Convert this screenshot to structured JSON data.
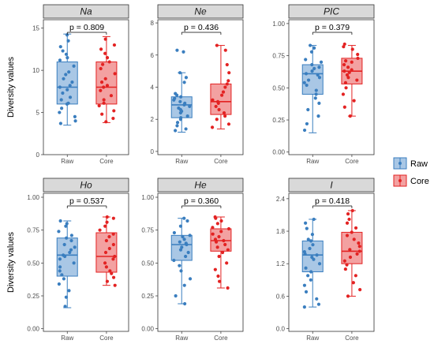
{
  "chart_data": [
    {
      "type": "box",
      "title": "Na",
      "ylabel": "Diversity values",
      "categories": [
        "Raw",
        "Core"
      ],
      "yticks": [
        0,
        5,
        10,
        15
      ],
      "ylim": [
        0,
        16
      ],
      "annotation": "p = 0.809",
      "series": [
        {
          "name": "Raw",
          "q1": 6.0,
          "median": 8.0,
          "q3": 11.0,
          "whisker_low": 3.5,
          "whisker_high": 14.3,
          "points": [
            14.2,
            13.5,
            12.8,
            12.3,
            11.9,
            11.5,
            11.2,
            10.5,
            9.8,
            9.5,
            9.0,
            8.6,
            8.2,
            8.0,
            7.7,
            7.3,
            6.8,
            6.5,
            6.1,
            6.0,
            5.5,
            5.0,
            4.5,
            4.0,
            3.7
          ]
        },
        {
          "name": "Core",
          "q1": 6.0,
          "median": 8.0,
          "q3": 11.0,
          "whisker_low": 3.8,
          "whisker_high": 14.0,
          "points": [
            13.7,
            13.0,
            12.5,
            12.0,
            11.5,
            11.0,
            10.7,
            10.2,
            9.6,
            9.0,
            8.6,
            8.2,
            8.0,
            7.6,
            7.0,
            6.5,
            6.1,
            5.8,
            5.2,
            4.8,
            4.3,
            3.9
          ]
        }
      ]
    },
    {
      "type": "box",
      "title": "Ne",
      "ylabel": "",
      "categories": [
        "Raw",
        "Core"
      ],
      "yticks": [
        0,
        2,
        4,
        6,
        8
      ],
      "ylim": [
        -0.2,
        8.2
      ],
      "annotation": "p = 0.436",
      "series": [
        {
          "name": "Raw",
          "q1": 2.1,
          "median": 2.9,
          "q3": 3.4,
          "whisker_low": 1.2,
          "whisker_high": 4.9,
          "points": [
            6.3,
            6.2,
            4.9,
            4.6,
            4.3,
            3.6,
            3.5,
            3.4,
            3.3,
            3.2,
            3.1,
            3.0,
            2.9,
            2.8,
            2.7,
            2.6,
            2.5,
            2.4,
            2.2,
            2.1,
            2.0,
            1.8,
            1.6,
            1.4,
            1.3
          ]
        },
        {
          "name": "Core",
          "q1": 2.3,
          "median": 3.1,
          "q3": 4.2,
          "whisker_low": 1.4,
          "whisker_high": 6.6,
          "points": [
            6.6,
            6.3,
            5.4,
            4.9,
            4.4,
            4.2,
            4.0,
            3.7,
            3.5,
            3.2,
            3.1,
            3.0,
            2.8,
            2.6,
            2.4,
            2.2,
            2.0,
            1.7,
            1.5
          ]
        }
      ]
    },
    {
      "type": "box",
      "title": "PIC",
      "ylabel": "",
      "categories": [
        "Raw",
        "Core"
      ],
      "yticks": [
        "0.00",
        "0.25",
        "0.50",
        "0.75",
        "1.00"
      ],
      "ylim": [
        -0.02,
        1.03
      ],
      "annotation": "p = 0.379",
      "series": [
        {
          "name": "Raw",
          "q1": 0.45,
          "median": 0.61,
          "q3": 0.68,
          "whisker_low": 0.15,
          "whisker_high": 0.83,
          "points": [
            0.83,
            0.81,
            0.78,
            0.72,
            0.7,
            0.68,
            0.66,
            0.65,
            0.63,
            0.61,
            0.6,
            0.58,
            0.56,
            0.54,
            0.52,
            0.48,
            0.45,
            0.42,
            0.38,
            0.33,
            0.28,
            0.22,
            0.17
          ]
        },
        {
          "name": "Core",
          "q1": 0.53,
          "median": 0.63,
          "q3": 0.73,
          "whisker_low": 0.28,
          "whisker_high": 0.83,
          "points": [
            0.84,
            0.82,
            0.8,
            0.76,
            0.73,
            0.71,
            0.7,
            0.68,
            0.66,
            0.64,
            0.63,
            0.62,
            0.6,
            0.58,
            0.56,
            0.54,
            0.5,
            0.45,
            0.4,
            0.35,
            0.28
          ]
        }
      ]
    },
    {
      "type": "box",
      "title": "Ho",
      "ylabel": "Diversity values",
      "categories": [
        "Raw",
        "Core"
      ],
      "yticks": [
        "0.00",
        "0.25",
        "0.50",
        "0.75",
        "1.00"
      ],
      "ylim": [
        -0.02,
        1.03
      ],
      "annotation": "p = 0.537",
      "series": [
        {
          "name": "Raw",
          "q1": 0.4,
          "median": 0.56,
          "q3": 0.69,
          "whisker_low": 0.16,
          "whisker_high": 0.82,
          "points": [
            0.82,
            0.8,
            0.78,
            0.74,
            0.71,
            0.69,
            0.67,
            0.64,
            0.62,
            0.6,
            0.58,
            0.56,
            0.55,
            0.53,
            0.5,
            0.47,
            0.44,
            0.41,
            0.38,
            0.34,
            0.29,
            0.24,
            0.17
          ]
        },
        {
          "name": "Core",
          "q1": 0.43,
          "median": 0.55,
          "q3": 0.73,
          "whisker_low": 0.33,
          "whisker_high": 0.85,
          "points": [
            0.85,
            0.84,
            0.81,
            0.78,
            0.75,
            0.72,
            0.7,
            0.67,
            0.64,
            0.61,
            0.58,
            0.55,
            0.53,
            0.5,
            0.47,
            0.44,
            0.42,
            0.39,
            0.36,
            0.33
          ]
        }
      ]
    },
    {
      "type": "box",
      "title": "He",
      "ylabel": "",
      "categories": [
        "Raw",
        "Core"
      ],
      "yticks": [
        "0.00",
        "0.25",
        "0.50",
        "0.75",
        "1.00"
      ],
      "ylim": [
        -0.02,
        1.03
      ],
      "annotation": "p = 0.360",
      "series": [
        {
          "name": "Raw",
          "q1": 0.52,
          "median": 0.64,
          "q3": 0.71,
          "whisker_low": 0.19,
          "whisker_high": 0.84,
          "points": [
            0.84,
            0.82,
            0.78,
            0.73,
            0.71,
            0.7,
            0.68,
            0.66,
            0.65,
            0.64,
            0.62,
            0.6,
            0.58,
            0.55,
            0.52,
            0.48,
            0.44,
            0.38,
            0.33,
            0.25,
            0.19
          ]
        },
        {
          "name": "Core",
          "q1": 0.59,
          "median": 0.67,
          "q3": 0.76,
          "whisker_low": 0.31,
          "whisker_high": 0.85,
          "points": [
            0.85,
            0.84,
            0.82,
            0.8,
            0.77,
            0.76,
            0.74,
            0.72,
            0.7,
            0.68,
            0.67,
            0.66,
            0.64,
            0.62,
            0.6,
            0.58,
            0.55,
            0.5,
            0.45,
            0.4,
            0.36,
            0.31
          ]
        }
      ]
    },
    {
      "type": "box",
      "title": "I",
      "ylabel": "",
      "categories": [
        "Raw",
        "Core"
      ],
      "yticks": [
        "0.0",
        "0.6",
        "1.2",
        "1.8",
        "2.4"
      ],
      "ylim": [
        -0.05,
        2.5
      ],
      "annotation": "p = 0.418",
      "series": [
        {
          "name": "Raw",
          "q1": 1.05,
          "median": 1.36,
          "q3": 1.62,
          "whisker_low": 0.4,
          "whisker_high": 2.02,
          "points": [
            2.02,
            1.95,
            1.85,
            1.74,
            1.65,
            1.62,
            1.55,
            1.48,
            1.42,
            1.38,
            1.36,
            1.32,
            1.28,
            1.2,
            1.12,
            1.05,
            0.98,
            0.9,
            0.8,
            0.68,
            0.55,
            0.45,
            0.4
          ]
        },
        {
          "name": "Core",
          "q1": 1.2,
          "median": 1.43,
          "q3": 1.78,
          "whisker_low": 0.6,
          "whisker_high": 2.18,
          "points": [
            2.18,
            2.12,
            2.02,
            1.95,
            1.86,
            1.78,
            1.72,
            1.65,
            1.58,
            1.52,
            1.46,
            1.43,
            1.38,
            1.32,
            1.25,
            1.18,
            1.1,
            0.98,
            0.85,
            0.72,
            0.6
          ]
        }
      ]
    }
  ],
  "legend": {
    "entries": [
      {
        "name": "Raw",
        "color": "#3a7ebf"
      },
      {
        "name": "Core",
        "color": "#e32222"
      }
    ],
    "position": "right"
  },
  "colors": {
    "raw": "#3a7ebf",
    "core": "#e32222",
    "raw_fill": "#a9c7e5",
    "core_fill": "#f3a1a1",
    "strip": "#d9d9d9"
  }
}
